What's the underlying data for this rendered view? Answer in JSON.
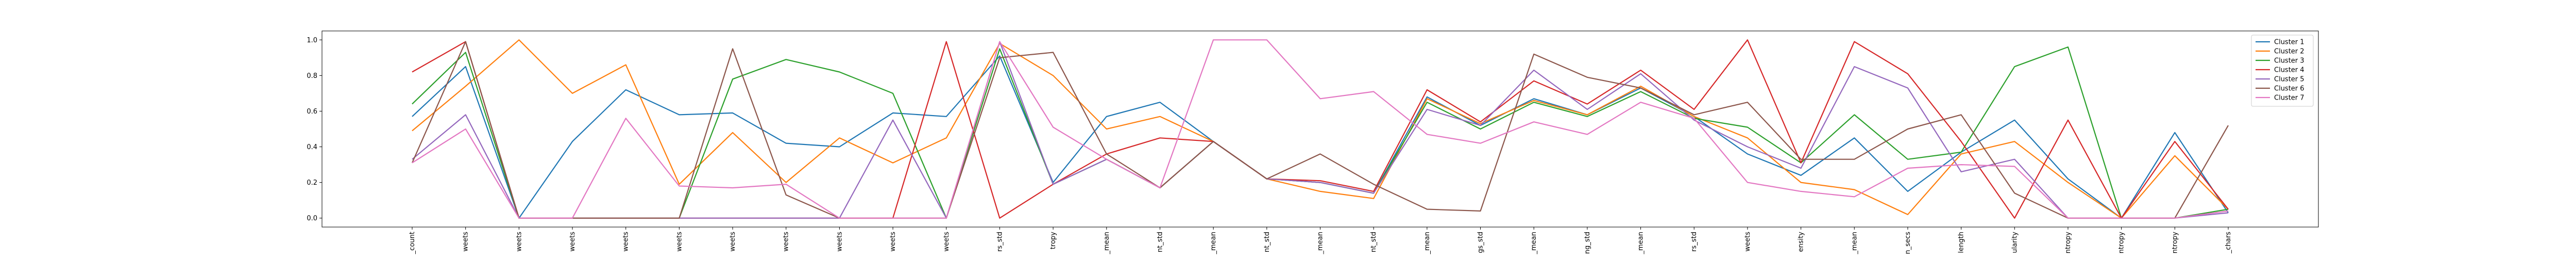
{
  "chart_data": {
    "type": "line",
    "title": "",
    "xlabel": "",
    "ylabel": "",
    "ylim": [
      -0.05,
      1.05
    ],
    "yticks": [
      "0.0",
      "0.2",
      "0.4",
      "0.6",
      "0.8",
      "1.0"
    ],
    "grid": false,
    "legend_position": "top-right",
    "categories": [
      "_count",
      "weets",
      "weets",
      "weets",
      "weets",
      "weets",
      "weets",
      "weets",
      "weets",
      "weets",
      "weets",
      "rs_std",
      "tropy",
      "_mean",
      "nt_std",
      "_mean",
      "nt_std",
      "_mean",
      "nt_std",
      "_mean",
      "gs_std",
      "_mean",
      "ng_std",
      "_mean",
      "rs_std",
      "weets",
      "ensity",
      "_mean",
      "n_secs",
      "length",
      "ularity",
      "ntropy",
      "ntropy",
      "ntropy",
      "_chars"
    ],
    "series": [
      {
        "name": "Cluster 1",
        "color": "#1f77b4",
        "values": [
          0.57,
          0.85,
          0.0,
          0.43,
          0.72,
          0.58,
          0.59,
          0.42,
          0.4,
          0.59,
          0.57,
          0.91,
          0.2,
          0.57,
          0.65,
          0.43,
          0.22,
          0.2,
          0.14,
          0.68,
          0.52,
          0.67,
          0.58,
          0.73,
          0.57,
          0.36,
          0.24,
          0.45,
          0.15,
          0.37,
          0.55,
          0.22,
          0.0,
          0.48,
          0.03
        ]
      },
      {
        "name": "Cluster 2",
        "color": "#ff7f0e",
        "values": [
          0.49,
          0.74,
          1.0,
          0.7,
          0.86,
          0.19,
          0.48,
          0.2,
          0.45,
          0.31,
          0.45,
          0.98,
          0.8,
          0.5,
          0.57,
          0.43,
          0.22,
          0.15,
          0.11,
          0.67,
          0.53,
          0.66,
          0.58,
          0.74,
          0.57,
          0.45,
          0.2,
          0.16,
          0.02,
          0.36,
          0.43,
          0.2,
          0.0,
          0.35,
          0.05
        ]
      },
      {
        "name": "Cluster 3",
        "color": "#2ca02c",
        "values": [
          0.64,
          0.93,
          0.0,
          0.0,
          0.0,
          0.0,
          0.78,
          0.89,
          0.82,
          0.7,
          0.0,
          0.95,
          0.19,
          0.33,
          0.17,
          0.43,
          0.22,
          0.2,
          0.14,
          0.65,
          0.5,
          0.65,
          0.57,
          0.71,
          0.56,
          0.51,
          0.31,
          0.58,
          0.33,
          0.37,
          0.85,
          0.96,
          0.0,
          0.0,
          0.05
        ]
      },
      {
        "name": "Cluster 4",
        "color": "#d62728",
        "values": [
          0.82,
          0.99,
          0.0,
          0.0,
          0.0,
          0.0,
          0.0,
          0.0,
          0.0,
          0.0,
          0.99,
          0.0,
          0.19,
          0.36,
          0.45,
          0.43,
          0.22,
          0.21,
          0.15,
          0.72,
          0.54,
          0.77,
          0.64,
          0.83,
          0.61,
          1.0,
          0.31,
          0.99,
          0.81,
          0.43,
          0.0,
          0.55,
          0.0,
          0.43,
          0.05
        ]
      },
      {
        "name": "Cluster 5",
        "color": "#9467bd",
        "values": [
          0.33,
          0.58,
          0.0,
          0.0,
          0.0,
          0.0,
          0.0,
          0.0,
          0.0,
          0.55,
          0.0,
          0.99,
          0.19,
          0.33,
          0.17,
          0.43,
          0.22,
          0.2,
          0.14,
          0.61,
          0.52,
          0.83,
          0.61,
          0.81,
          0.55,
          0.4,
          0.28,
          0.85,
          0.73,
          0.26,
          0.33,
          0.0,
          0.0,
          0.0,
          0.03
        ]
      },
      {
        "name": "Cluster 6",
        "color": "#8c564b",
        "values": [
          0.31,
          0.99,
          0.0,
          0.0,
          0.0,
          0.0,
          0.95,
          0.13,
          0.0,
          0.0,
          0.0,
          0.9,
          0.93,
          0.36,
          0.17,
          0.43,
          0.22,
          0.36,
          0.19,
          0.05,
          0.04,
          0.92,
          0.79,
          0.73,
          0.58,
          0.65,
          0.33,
          0.33,
          0.5,
          0.58,
          0.14,
          0.0,
          0.0,
          0.0,
          0.52
        ]
      },
      {
        "name": "Cluster 7",
        "color": "#e377c2",
        "values": [
          0.31,
          0.5,
          0.0,
          0.0,
          0.56,
          0.18,
          0.17,
          0.19,
          0.0,
          0.0,
          0.0,
          0.99,
          0.51,
          0.33,
          0.17,
          1.0,
          1.0,
          0.67,
          0.71,
          0.47,
          0.42,
          0.54,
          0.47,
          0.65,
          0.56,
          0.2,
          0.15,
          0.12,
          0.28,
          0.3,
          0.29,
          0.0,
          0.0,
          0.0,
          0.04
        ]
      }
    ]
  }
}
